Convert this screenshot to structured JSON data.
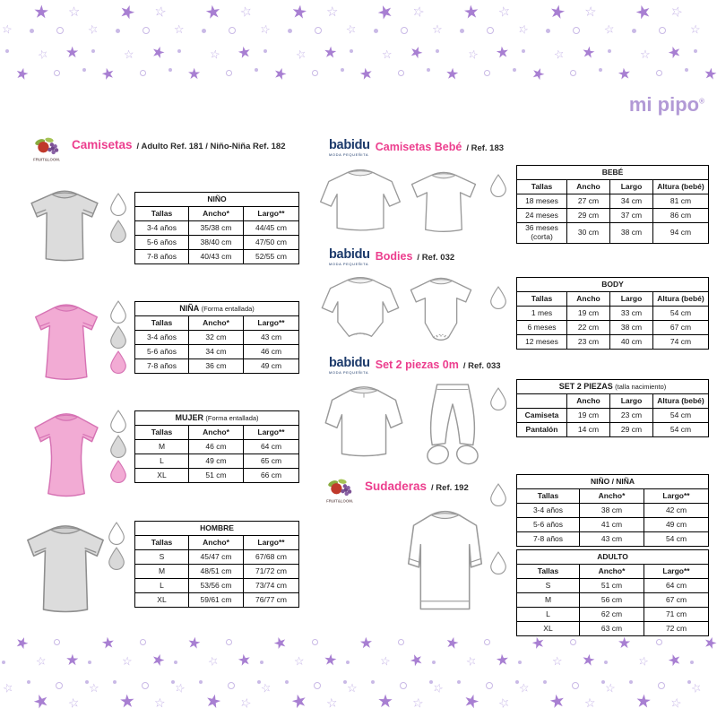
{
  "brand": {
    "name": "mi pipo",
    "reg": "®"
  },
  "logos": {
    "fruit": {
      "name": "Fruit of the Loom",
      "text": "FRUIT&LOOM."
    },
    "babidu": {
      "name": "babidu",
      "tagline": "MODA PEQUEÑITA"
    }
  },
  "sections": {
    "camisetas": {
      "title": "Camisetas",
      "subtitle": "/ Adulto Ref. 181 / Niño-Niña Ref. 182"
    },
    "camisetas_bebe": {
      "title": "Camisetas Bebé",
      "subtitle": "/ Ref. 183"
    },
    "bodies": {
      "title": "Bodies",
      "subtitle": "/ Ref. 032"
    },
    "set2piezas": {
      "title": "Set 2 piezas 0m",
      "subtitle": "/ Ref. 033"
    },
    "sudaderas": {
      "title": "Sudaderas",
      "subtitle": "/ Ref. 192"
    }
  },
  "tables": {
    "nino": {
      "title": "NIÑO",
      "headers": [
        "Tallas",
        "Ancho*",
        "Largo**"
      ],
      "rows": [
        [
          "3-4 años",
          "35/38 cm",
          "44/45 cm"
        ],
        [
          "5-6 años",
          "38/40 cm",
          "47/50 cm"
        ],
        [
          "7-8 años",
          "40/43 cm",
          "52/55 cm"
        ]
      ]
    },
    "nina": {
      "title": "NIÑA",
      "note": "(Forma entallada)",
      "headers": [
        "Tallas",
        "Ancho*",
        "Largo**"
      ],
      "rows": [
        [
          "3-4 años",
          "32 cm",
          "43 cm"
        ],
        [
          "5-6 años",
          "34 cm",
          "46 cm"
        ],
        [
          "7-8 años",
          "36 cm",
          "49 cm"
        ]
      ]
    },
    "mujer": {
      "title": "MUJER",
      "note": "(Forma entallada)",
      "headers": [
        "Tallas",
        "Ancho*",
        "Largo**"
      ],
      "rows": [
        [
          "M",
          "46 cm",
          "64 cm"
        ],
        [
          "L",
          "49 cm",
          "65 cm"
        ],
        [
          "XL",
          "51 cm",
          "66 cm"
        ]
      ]
    },
    "hombre": {
      "title": "HOMBRE",
      "headers": [
        "Tallas",
        "Ancho*",
        "Largo**"
      ],
      "rows": [
        [
          "S",
          "45/47 cm",
          "67/68 cm"
        ],
        [
          "M",
          "48/51 cm",
          "71/72 cm"
        ],
        [
          "L",
          "53/56 cm",
          "73/74 cm"
        ],
        [
          "XL",
          "59/61 cm",
          "76/77 cm"
        ]
      ]
    },
    "bebe": {
      "title": "BEBÉ",
      "headers": [
        "Tallas",
        "Ancho",
        "Largo",
        "Altura (bebé)"
      ],
      "rows": [
        [
          "18 meses",
          "27 cm",
          "34 cm",
          "81 cm"
        ],
        [
          "24 meses",
          "29 cm",
          "37 cm",
          "86 cm"
        ],
        [
          "36 meses (corta)",
          "30 cm",
          "38 cm",
          "94 cm"
        ]
      ]
    },
    "body": {
      "title": "BODY",
      "headers": [
        "Tallas",
        "Ancho",
        "Largo",
        "Altura (bebé)"
      ],
      "rows": [
        [
          "1 mes",
          "19 cm",
          "33 cm",
          "54 cm"
        ],
        [
          "6 meses",
          "22 cm",
          "38 cm",
          "67 cm"
        ],
        [
          "12 meses",
          "23 cm",
          "40 cm",
          "74 cm"
        ]
      ]
    },
    "set": {
      "title": "SET 2 PIEZAS",
      "note": "(talla nacimiento)",
      "headers": [
        "",
        "Ancho",
        "Largo",
        "Altura (bebé)"
      ],
      "rows": [
        [
          "Camiseta",
          "19 cm",
          "23 cm",
          "54 cm"
        ],
        [
          "Pantalón",
          "14 cm",
          "29 cm",
          "54 cm"
        ]
      ]
    },
    "nino_nina": {
      "title": "NIÑO / NIÑA",
      "headers": [
        "Tallas",
        "Ancho*",
        "Largo**"
      ],
      "rows": [
        [
          "3-4 años",
          "38 cm",
          "42 cm"
        ],
        [
          "5-6 años",
          "41 cm",
          "49 cm"
        ],
        [
          "7-8 años",
          "43 cm",
          "54 cm"
        ]
      ]
    },
    "adulto": {
      "title": "ADULTO",
      "headers": [
        "Tallas",
        "Ancho*",
        "Largo**"
      ],
      "rows": [
        [
          "S",
          "51 cm",
          "64 cm"
        ],
        [
          "M",
          "56 cm",
          "67 cm"
        ],
        [
          "L",
          "62 cm",
          "71 cm"
        ],
        [
          "XL",
          "63 cm",
          "72 cm"
        ]
      ]
    }
  },
  "colors": {
    "accent_pink": "#ec3e8e",
    "babidu_navy": "#1c3a6b",
    "mipipo_purple": "#b29ad6",
    "star_filled": "#a87fd2",
    "star_outline": "#c3b1e6",
    "dot_purple": "#c9b9e6",
    "shirt_gray": "#dcdcdc",
    "shirt_pink": "#f2abd4",
    "drop_gray": "#d9d9d9"
  }
}
